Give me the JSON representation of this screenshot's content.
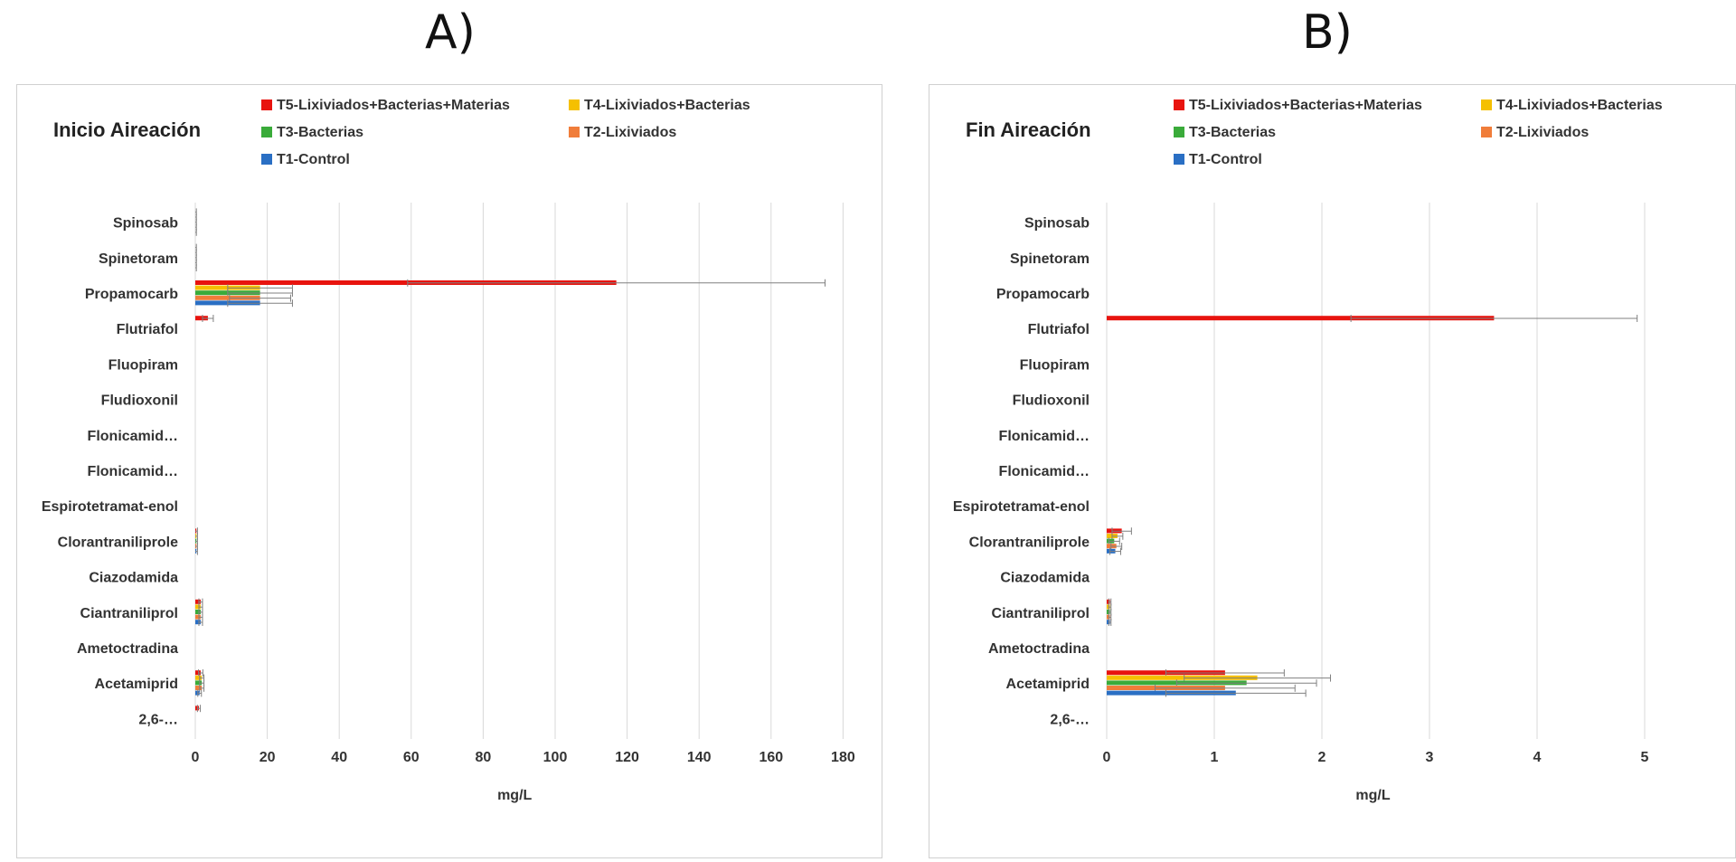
{
  "panels": [
    {
      "label": "A)"
    },
    {
      "label": "B)"
    }
  ],
  "colors": {
    "T5": "#e8140f",
    "T4": "#f5c000",
    "T3": "#3aab3a",
    "T2": "#f07d3a",
    "T1": "#2a6fc4",
    "error_bar": "#808080",
    "grid": "#d9d9d9"
  },
  "chart_data": [
    {
      "type": "bar",
      "orientation": "horizontal",
      "title": "Inicio Aireación",
      "xlabel": "mg/L",
      "xlim": [
        0,
        180
      ],
      "xticks": [
        "0",
        "20",
        "40",
        "60",
        "80",
        "100",
        "120",
        "140",
        "160",
        "180"
      ],
      "grid": true,
      "legend_position": "top",
      "categories": [
        "Spinosab",
        "Spinetoram",
        "Propamocarb",
        "Flutriafol",
        "Fluopiram",
        "Fludioxonil",
        "Flonicamid…",
        "Flonicamid…",
        "Espirotetramat-enol",
        "Clorantraniliprole",
        "Ciazodamida",
        "Ciantraniliprol",
        "Ametoctradina",
        "Acetamiprid",
        "2,6-…"
      ],
      "series": [
        {
          "name": "T5-Lixiviados+Bacterias+Materias",
          "key": "T5",
          "values": [
            0,
            0,
            117,
            3.5,
            0,
            0,
            0,
            0,
            0,
            0.3,
            0,
            1.5,
            0,
            1.5,
            1.0
          ],
          "errors": [
            0.3,
            0.3,
            58,
            1.5,
            0,
            0,
            0,
            0,
            0,
            0.3,
            0,
            0.5,
            0,
            0.6,
            0.4
          ]
        },
        {
          "name": "T4-Lixiviados+Bacterias",
          "key": "T4",
          "values": [
            0,
            0,
            18,
            0,
            0,
            0,
            0,
            0,
            0,
            0.3,
            0,
            1.5,
            0,
            1.8,
            0
          ],
          "errors": [
            0.3,
            0.3,
            9,
            0,
            0,
            0,
            0,
            0,
            0,
            0.3,
            0,
            0.5,
            0,
            0.6,
            0
          ]
        },
        {
          "name": "T3-Bacterias",
          "key": "T3",
          "values": [
            0,
            0,
            18,
            0,
            0,
            0,
            0,
            0,
            0,
            0.3,
            0,
            1.5,
            0,
            1.8,
            0
          ],
          "errors": [
            0.3,
            0.3,
            9,
            0,
            0,
            0,
            0,
            0,
            0,
            0.3,
            0,
            0.5,
            0,
            0.6,
            0
          ]
        },
        {
          "name": "T2-Lixiviados",
          "key": "T2",
          "values": [
            0,
            0,
            18,
            0,
            0,
            0,
            0,
            0,
            0,
            0.3,
            0,
            1.5,
            0,
            1.8,
            0
          ],
          "errors": [
            0.3,
            0.3,
            8.5,
            0,
            0,
            0,
            0,
            0,
            0,
            0.3,
            0,
            0.5,
            0,
            0.6,
            0
          ]
        },
        {
          "name": "T1-Control",
          "key": "T1",
          "values": [
            0,
            0,
            18,
            0,
            0,
            0,
            0,
            0,
            0,
            0.3,
            0,
            1.5,
            0,
            1.2,
            0
          ],
          "errors": [
            0.3,
            0.3,
            9,
            0,
            0,
            0,
            0,
            0,
            0,
            0.3,
            0,
            0.5,
            0,
            0.5,
            0
          ]
        }
      ]
    },
    {
      "type": "bar",
      "orientation": "horizontal",
      "title": "Fin Aireación",
      "xlabel": "mg/L",
      "xlim": [
        0,
        5
      ],
      "xticks": [
        "0",
        "1",
        "2",
        "3",
        "4",
        "5"
      ],
      "grid": true,
      "legend_position": "top",
      "categories": [
        "Spinosab",
        "Spinetoram",
        "Propamocarb",
        "Flutriafol",
        "Fluopiram",
        "Fludioxonil",
        "Flonicamid…",
        "Flonicamid…",
        "Espirotetramat-enol",
        "Clorantraniliprole",
        "Ciazodamida",
        "Ciantraniliprol",
        "Ametoctradina",
        "Acetamiprid",
        "2,6-…"
      ],
      "series": [
        {
          "name": "T5-Lixiviados+Bacterias+Materias",
          "key": "T5",
          "values": [
            0,
            0,
            0,
            3.6,
            0,
            0,
            0,
            0,
            0,
            0.14,
            0,
            0.03,
            0,
            1.1,
            0
          ],
          "errors": [
            0,
            0,
            0,
            1.33,
            0,
            0,
            0,
            0,
            0,
            0.09,
            0,
            0.01,
            0,
            0.55,
            0
          ]
        },
        {
          "name": "T4-Lixiviados+Bacterias",
          "key": "T4",
          "values": [
            0,
            0,
            0,
            0,
            0,
            0,
            0,
            0,
            0,
            0.1,
            0,
            0.03,
            0,
            1.4,
            0
          ],
          "errors": [
            0,
            0,
            0,
            0,
            0,
            0,
            0,
            0,
            0,
            0.05,
            0,
            0.01,
            0,
            0.68,
            0
          ]
        },
        {
          "name": "T3-Bacterias",
          "key": "T3",
          "values": [
            0,
            0,
            0,
            0,
            0,
            0,
            0,
            0,
            0,
            0.07,
            0,
            0.03,
            0,
            1.3,
            0
          ],
          "errors": [
            0,
            0,
            0,
            0,
            0,
            0,
            0,
            0,
            0,
            0.05,
            0,
            0.01,
            0,
            0.65,
            0
          ]
        },
        {
          "name": "T2-Lixiviados",
          "key": "T2",
          "values": [
            0,
            0,
            0,
            0,
            0,
            0,
            0,
            0,
            0,
            0.09,
            0,
            0.03,
            0,
            1.1,
            0
          ],
          "errors": [
            0,
            0,
            0,
            0,
            0,
            0,
            0,
            0,
            0,
            0.05,
            0,
            0.01,
            0,
            0.65,
            0
          ]
        },
        {
          "name": "T1-Control",
          "key": "T1",
          "values": [
            0,
            0,
            0,
            0,
            0,
            0,
            0,
            0,
            0,
            0.08,
            0,
            0.03,
            0,
            1.2,
            0
          ],
          "errors": [
            0,
            0,
            0,
            0,
            0,
            0,
            0,
            0,
            0,
            0.05,
            0,
            0.01,
            0,
            0.65,
            0
          ]
        }
      ]
    }
  ]
}
